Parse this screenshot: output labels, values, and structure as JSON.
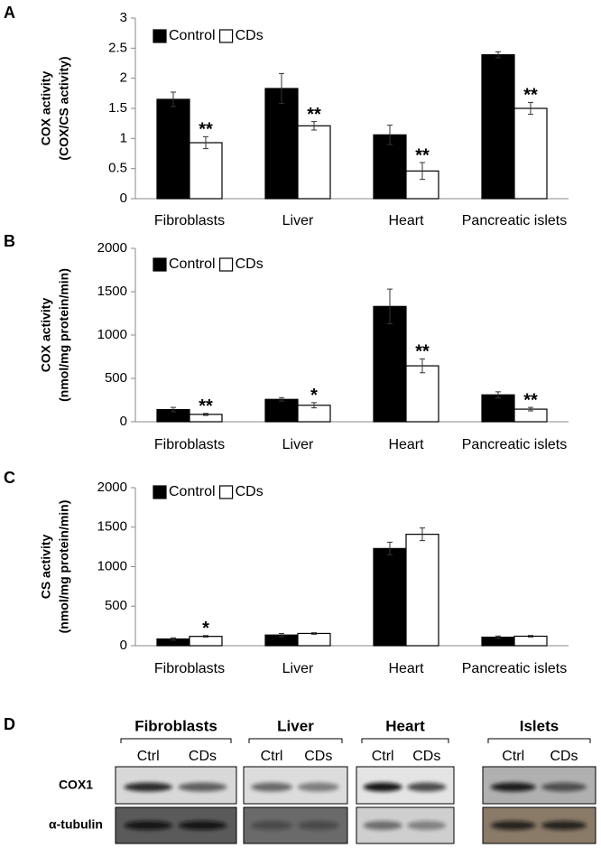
{
  "chart_data": [
    {
      "type": "bar",
      "panel": "A",
      "ylabel": [
        "COX activity",
        "(COX/CS activity)"
      ],
      "categories": [
        "Fibroblasts",
        "Liver",
        "Heart",
        "Pancreatic islets"
      ],
      "series": [
        {
          "name": "Control",
          "color": "#000000",
          "values": [
            1.65,
            1.83,
            1.06,
            2.39
          ],
          "errors": [
            0.12,
            0.25,
            0.16,
            0.05
          ]
        },
        {
          "name": "CDs",
          "color": "#ffffff",
          "values": [
            0.93,
            1.21,
            0.46,
            1.5
          ],
          "errors": [
            0.1,
            0.07,
            0.14,
            0.1
          ],
          "significance": [
            "**",
            "**",
            "**",
            "**"
          ]
        }
      ],
      "ylim": [
        0,
        3
      ],
      "yticks": [
        0,
        0.5,
        1,
        1.5,
        2,
        2.5,
        3
      ],
      "legend": "upper left"
    },
    {
      "type": "bar",
      "panel": "B",
      "ylabel": [
        "COX activity",
        "(nmol/mg protein/min)"
      ],
      "categories": [
        "Fibroblasts",
        "Liver",
        "Heart",
        "Pancreatic islets"
      ],
      "series": [
        {
          "name": "Control",
          "color": "#000000",
          "values": [
            140,
            258,
            1330,
            310
          ],
          "errors": [
            25,
            20,
            200,
            35
          ]
        },
        {
          "name": "CDs",
          "color": "#ffffff",
          "values": [
            85,
            190,
            645,
            145
          ],
          "errors": [
            12,
            30,
            80,
            20
          ],
          "significance": [
            "**",
            "*",
            "**",
            "**"
          ]
        }
      ],
      "ylim": [
        0,
        2000
      ],
      "yticks": [
        0,
        500,
        1000,
        1500,
        2000
      ],
      "legend": "upper left"
    },
    {
      "type": "bar",
      "panel": "C",
      "ylabel": [
        "CS activity",
        "(nmol/mg protein/min)"
      ],
      "categories": [
        "Fibroblasts",
        "Liver",
        "Heart",
        "Pancreatic islets"
      ],
      "series": [
        {
          "name": "Control",
          "color": "#000000",
          "values": [
            85,
            135,
            1230,
            108
          ],
          "errors": [
            15,
            20,
            80,
            15
          ]
        },
        {
          "name": "CDs",
          "color": "#ffffff",
          "values": [
            118,
            155,
            1410,
            120
          ],
          "errors": [
            10,
            10,
            80,
            10
          ],
          "significance": [
            "*",
            null,
            null,
            null
          ]
        }
      ],
      "ylim": [
        0,
        2000
      ],
      "yticks": [
        0,
        500,
        1000,
        1500,
        2000
      ],
      "legend": "upper left"
    }
  ],
  "blot": {
    "panel": "D",
    "groups": [
      {
        "title": "Fibroblasts",
        "lanes": [
          "Ctrl",
          "CDs"
        ]
      },
      {
        "title": "Liver",
        "lanes": [
          "Ctrl",
          "CDs"
        ]
      },
      {
        "title": "Heart",
        "lanes": [
          "Ctrl",
          "CDs"
        ]
      },
      {
        "title": "Islets",
        "lanes": [
          "Ctrl",
          "CDs"
        ]
      }
    ],
    "rows": [
      "COX1",
      "α-tubulin"
    ]
  }
}
